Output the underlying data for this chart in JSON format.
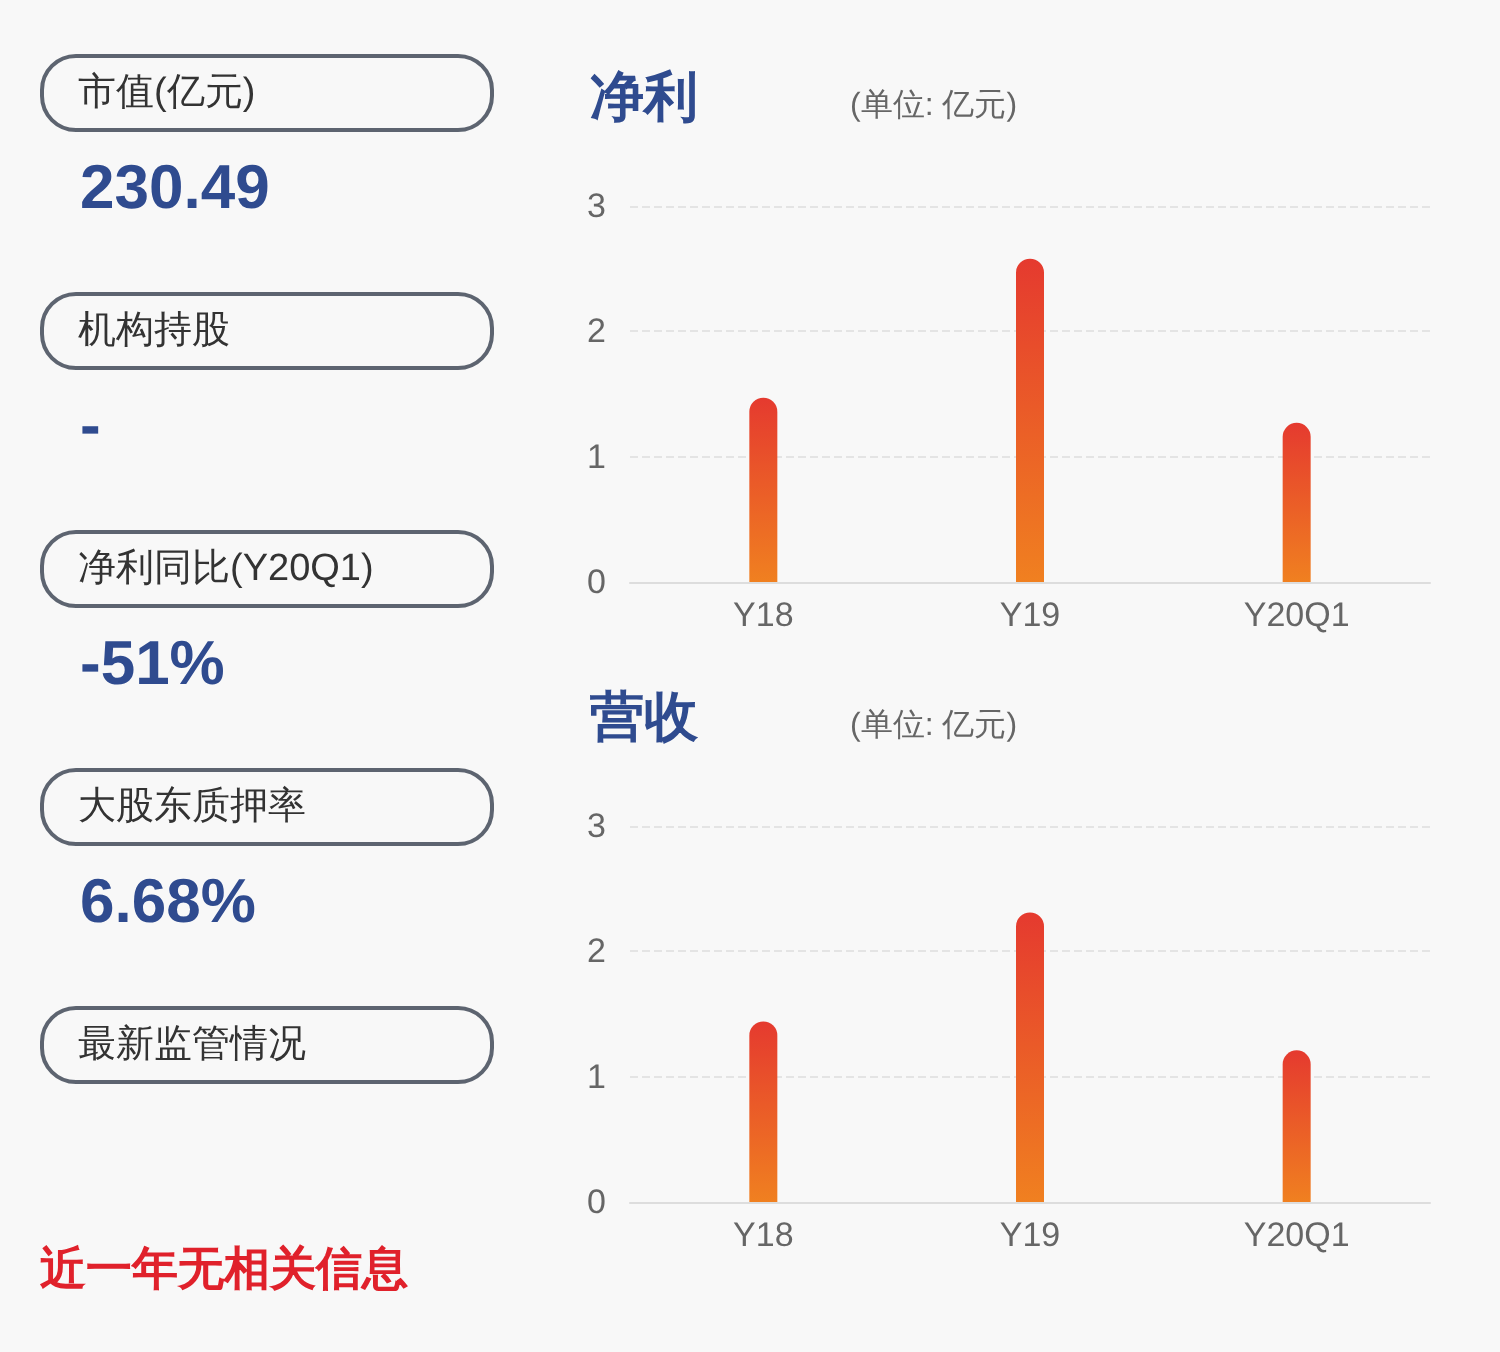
{
  "chart_data": [
    {
      "type": "other",
      "categories": [
        "市值(亿元)",
        "机构持股",
        "净利同比(Y20Q1)",
        "大股东质押率",
        "最新监管情况"
      ],
      "value_labels": [
        "230.49",
        "-",
        "-51%",
        "6.68%",
        null
      ],
      "annotations": [
        "近一年无相关信息"
      ]
    },
    {
      "type": "bar",
      "title": "净利",
      "subtitle": "(单位: 亿元)",
      "categories": [
        "Y18",
        "Y19",
        "Y20Q1"
      ],
      "series": [
        {
          "color": "#e53a2f",
          "values": [
            1.47,
            2.58,
            1.27
          ]
        }
      ],
      "ylim": [
        0,
        3
      ],
      "yticks": [
        0,
        1,
        2,
        3
      ],
      "grid": "y"
    },
    {
      "type": "bar",
      "title": "营收",
      "subtitle": "(单位: 亿元)",
      "categories": [
        "Y18",
        "Y19",
        "Y20Q1"
      ],
      "series": [
        {
          "color": "#e53a2f",
          "values": [
            1.44,
            2.31,
            1.21
          ]
        }
      ],
      "ylim": [
        0,
        3
      ],
      "yticks": [
        0,
        1,
        2,
        3
      ],
      "grid": "y"
    }
  ]
}
